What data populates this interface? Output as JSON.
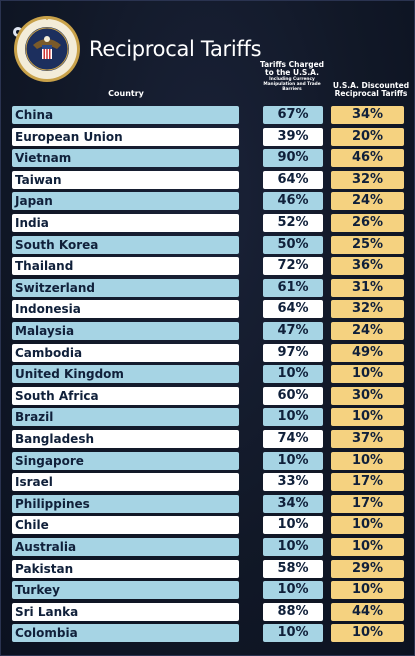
{
  "header": {
    "title": "Reciprocal Tariffs",
    "col_country": "Country",
    "col_charged": "Tariffs Charged to the U.S.A.",
    "col_charged_sub": "Including Currency Manipulation and Trade Barriers",
    "col_discounted": "U.S.A. Discounted Reciprocal Tariffs"
  },
  "icons": {
    "seal": "presidential-seal",
    "corner": "gear-icon"
  },
  "colors": {
    "background": "#111827",
    "row_blue": "#a6d4e4",
    "row_white": "#ffffff",
    "discount_column": "#f5d280",
    "text": "#10203a"
  },
  "chart_data": {
    "type": "table",
    "title": "Reciprocal Tariffs",
    "columns": [
      "Country",
      "Tariffs Charged to the U.S.A.",
      "U.S.A. Discounted Reciprocal Tariffs"
    ],
    "rows": [
      {
        "country": "China",
        "charged": "67%",
        "discounted": "34%"
      },
      {
        "country": "European Union",
        "charged": "39%",
        "discounted": "20%"
      },
      {
        "country": "Vietnam",
        "charged": "90%",
        "discounted": "46%"
      },
      {
        "country": "Taiwan",
        "charged": "64%",
        "discounted": "32%"
      },
      {
        "country": "Japan",
        "charged": "46%",
        "discounted": "24%"
      },
      {
        "country": "India",
        "charged": "52%",
        "discounted": "26%"
      },
      {
        "country": "South Korea",
        "charged": "50%",
        "discounted": "25%"
      },
      {
        "country": "Thailand",
        "charged": "72%",
        "discounted": "36%"
      },
      {
        "country": "Switzerland",
        "charged": "61%",
        "discounted": "31%"
      },
      {
        "country": "Indonesia",
        "charged": "64%",
        "discounted": "32%"
      },
      {
        "country": "Malaysia",
        "charged": "47%",
        "discounted": "24%"
      },
      {
        "country": "Cambodia",
        "charged": "97%",
        "discounted": "49%"
      },
      {
        "country": "United Kingdom",
        "charged": "10%",
        "discounted": "10%"
      },
      {
        "country": "South Africa",
        "charged": "60%",
        "discounted": "30%"
      },
      {
        "country": "Brazil",
        "charged": "10%",
        "discounted": "10%"
      },
      {
        "country": "Bangladesh",
        "charged": "74%",
        "discounted": "37%"
      },
      {
        "country": "Singapore",
        "charged": "10%",
        "discounted": "10%"
      },
      {
        "country": "Israel",
        "charged": "33%",
        "discounted": "17%"
      },
      {
        "country": "Philippines",
        "charged": "34%",
        "discounted": "17%"
      },
      {
        "country": "Chile",
        "charged": "10%",
        "discounted": "10%"
      },
      {
        "country": "Australia",
        "charged": "10%",
        "discounted": "10%"
      },
      {
        "country": "Pakistan",
        "charged": "58%",
        "discounted": "29%"
      },
      {
        "country": "Turkey",
        "charged": "10%",
        "discounted": "10%"
      },
      {
        "country": "Sri Lanka",
        "charged": "88%",
        "discounted": "44%"
      },
      {
        "country": "Colombia",
        "charged": "10%",
        "discounted": "10%"
      }
    ]
  }
}
